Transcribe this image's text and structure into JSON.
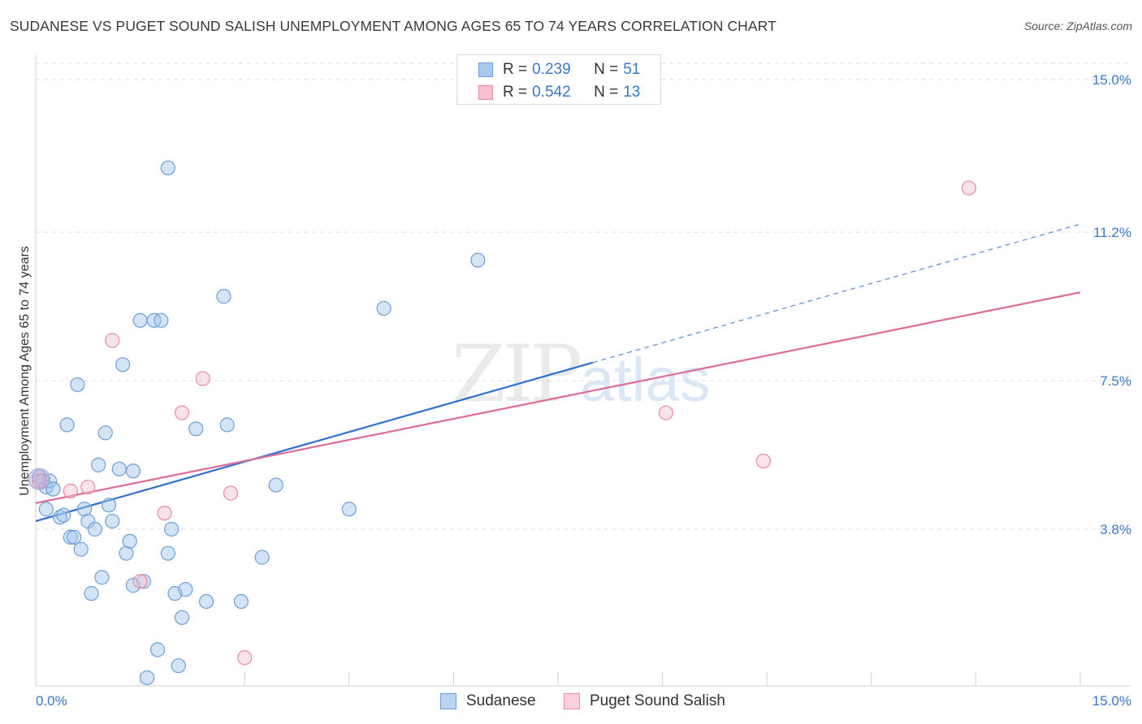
{
  "title": "SUDANESE VS PUGET SOUND SALISH UNEMPLOYMENT AMONG AGES 65 TO 74 YEARS CORRELATION CHART",
  "source": "Source: ZipAtlas.com",
  "watermark": {
    "zip": "ZIP",
    "atlas": "atlas"
  },
  "legend_top": [
    {
      "r_key": "R = ",
      "r": "0.239",
      "n_key": "N = ",
      "n": "51",
      "color": "#a9c8f0",
      "border": "#6f9fd8"
    },
    {
      "r_key": "R = ",
      "r": "0.542",
      "n_key": "N = ",
      "n": "13",
      "color": "#f7c1d0",
      "border": "#e88aa8"
    }
  ],
  "legend_bottom": [
    {
      "label": "Sudanese",
      "color": "#b9d3f3",
      "border": "#6f9fd8"
    },
    {
      "label": "Puget Sound Salish",
      "color": "#f9d0dc",
      "border": "#e88aa8"
    }
  ],
  "chart_data": {
    "type": "scatter",
    "xlabel": "",
    "ylabel": "Unemployment Among Ages 65 to 74 years",
    "xlim": [
      0,
      15
    ],
    "ylim": [
      0,
      15
    ],
    "x_tick_labels": [
      {
        "value": 0,
        "label": "0.0%"
      },
      {
        "value": 15,
        "label": "15.0%"
      }
    ],
    "y_tick_labels": [
      {
        "value": 3.8,
        "label": "3.8%"
      },
      {
        "value": 7.5,
        "label": "7.5%"
      },
      {
        "value": 11.2,
        "label": "11.2%"
      },
      {
        "value": 15.0,
        "label": "15.0%"
      }
    ],
    "x_minor_ticks": [
      0,
      1.5,
      3,
      4.5,
      6,
      7.5,
      9,
      10.5,
      12,
      13.5,
      15
    ],
    "series": [
      {
        "name": "Sudanese",
        "color": "#6f9fd8",
        "fill": "rgba(160,196,240,0.45)",
        "points": [
          [
            0.05,
            5.1
          ],
          [
            0.1,
            5.0
          ],
          [
            0.15,
            4.85
          ],
          [
            0.2,
            5.0
          ],
          [
            0.25,
            4.8
          ],
          [
            0.15,
            4.3
          ],
          [
            0.35,
            4.1
          ],
          [
            0.4,
            4.15
          ],
          [
            0.5,
            3.6
          ],
          [
            0.55,
            3.6
          ],
          [
            0.45,
            6.4
          ],
          [
            0.6,
            7.4
          ],
          [
            0.65,
            3.3
          ],
          [
            0.7,
            4.3
          ],
          [
            0.75,
            4.0
          ],
          [
            0.85,
            3.8
          ],
          [
            0.9,
            5.4
          ],
          [
            0.95,
            2.6
          ],
          [
            0.8,
            2.2
          ],
          [
            1.0,
            6.2
          ],
          [
            1.05,
            4.4
          ],
          [
            1.1,
            4.0
          ],
          [
            1.2,
            5.3
          ],
          [
            1.25,
            7.9
          ],
          [
            1.3,
            3.2
          ],
          [
            1.35,
            3.5
          ],
          [
            1.4,
            5.25
          ],
          [
            1.4,
            2.4
          ],
          [
            1.5,
            9.0
          ],
          [
            1.55,
            2.5
          ],
          [
            1.6,
            0.1
          ],
          [
            1.7,
            9.0
          ],
          [
            1.75,
            0.8
          ],
          [
            1.8,
            9.0
          ],
          [
            1.9,
            3.2
          ],
          [
            1.9,
            12.8
          ],
          [
            1.95,
            3.8
          ],
          [
            2.0,
            2.2
          ],
          [
            2.05,
            0.4
          ],
          [
            2.1,
            1.6
          ],
          [
            2.15,
            2.3
          ],
          [
            2.3,
            6.3
          ],
          [
            2.45,
            2.0
          ],
          [
            2.7,
            9.6
          ],
          [
            2.75,
            6.4
          ],
          [
            2.95,
            2.0
          ],
          [
            3.25,
            3.1
          ],
          [
            3.45,
            4.9
          ],
          [
            4.5,
            4.3
          ],
          [
            5.0,
            9.3
          ],
          [
            6.35,
            10.5
          ]
        ]
      },
      {
        "name": "Puget Sound Salish",
        "color": "#e88aa8",
        "fill": "rgba(247,193,208,0.45)",
        "points": [
          [
            0.05,
            5.0
          ],
          [
            0.5,
            4.75
          ],
          [
            0.75,
            4.85
          ],
          [
            1.1,
            8.5
          ],
          [
            1.5,
            2.5
          ],
          [
            1.85,
            4.2
          ],
          [
            2.1,
            6.7
          ],
          [
            2.4,
            7.55
          ],
          [
            2.8,
            4.7
          ],
          [
            3.0,
            0.6
          ],
          [
            9.05,
            6.7
          ],
          [
            10.45,
            5.5
          ],
          [
            13.4,
            12.3
          ]
        ]
      }
    ],
    "trendlines": [
      {
        "series": "Sudanese",
        "x0": 0,
        "y0": 4.0,
        "x1": 8.0,
        "y1": 7.95,
        "dashed_to_x": 15,
        "dashed_to_y": 11.4
      },
      {
        "series": "Puget Sound Salish",
        "x0": 0,
        "y0": 4.45,
        "x1": 15,
        "y1": 9.7
      }
    ]
  }
}
